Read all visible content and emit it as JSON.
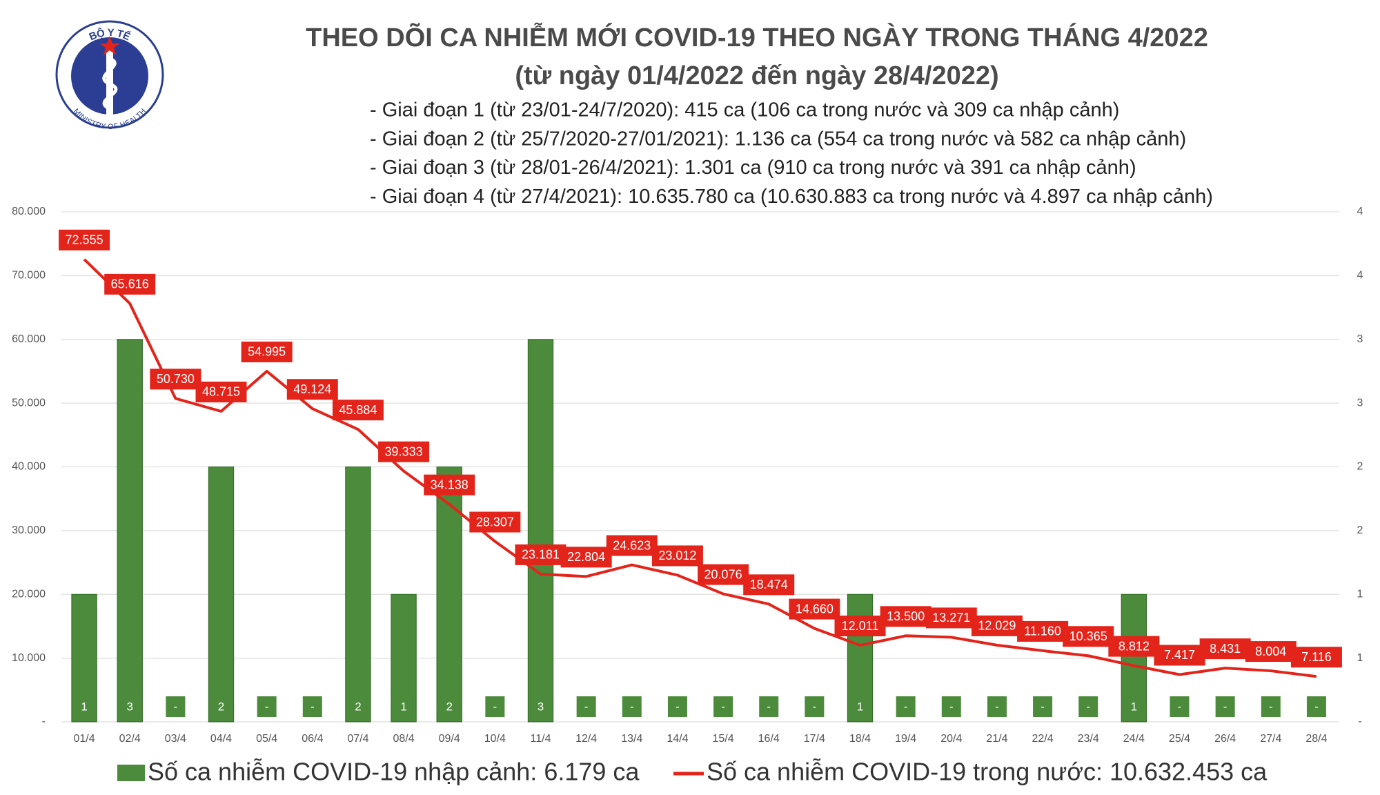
{
  "logo": {
    "top_text": "BỘ Y TẾ",
    "bottom_text": "MINISTRY OF HEALTH"
  },
  "chart_data": {
    "type": "combo",
    "title": "THEO DÕI CA NHIỄM MỚI COVID-19 THEO NGÀY TRONG THÁNG 4/2022",
    "subtitle": "(từ ngày 01/4/2022 đến ngày 28/4/2022)",
    "annotations": [
      "- Giai đoạn 1 (từ 23/01-24/7/2020): 415 ca (106 ca trong nước và 309 ca nhập cảnh)",
      "- Giai đoạn 2 (từ 25/7/2020-27/01/2021): 1.136 ca (554 ca trong nước và 582 ca nhập cảnh)",
      "- Giai đoạn 3 (từ 28/01-26/4/2021): 1.301 ca (910 ca trong nước và 391 ca nhập cảnh)",
      "- Giai đoạn 4 (từ 27/4/2021): 10.635.780 ca (10.630.883 ca trong nước và 4.897 ca nhập cảnh)"
    ],
    "categories": [
      "01/4",
      "02/4",
      "03/4",
      "04/4",
      "05/4",
      "06/4",
      "07/4",
      "08/4",
      "09/4",
      "10/4",
      "11/4",
      "12/4",
      "13/4",
      "14/4",
      "15/4",
      "16/4",
      "17/4",
      "18/4",
      "19/4",
      "20/4",
      "21/4",
      "22/4",
      "23/4",
      "24/4",
      "25/4",
      "26/4",
      "27/4",
      "28/4"
    ],
    "series": [
      {
        "name": "Số ca nhiễm COVID-19 nhập cảnh: 6.179 ca",
        "type": "bar",
        "axis": "y2",
        "color": "#4b8b3b",
        "values": [
          1,
          3,
          0,
          2,
          0,
          0,
          2,
          1,
          2,
          0,
          3,
          0,
          0,
          0,
          0,
          0,
          0,
          1,
          0,
          0,
          0,
          0,
          0,
          1,
          0,
          0,
          0,
          0
        ],
        "value_labels": [
          "1",
          "3",
          "-",
          "2",
          "-",
          "-",
          "2",
          "1",
          "2",
          "-",
          "3",
          "-",
          "-",
          "-",
          "-",
          "-",
          "-",
          "1",
          "-",
          "-",
          "-",
          "-",
          "-",
          "1",
          "-",
          "-",
          "-",
          "-"
        ]
      },
      {
        "name": "Số ca nhiễm COVID-19 trong nước: 10.632.453 ca",
        "type": "line",
        "color": "#e3241b",
        "values": [
          72555,
          65616,
          50730,
          48715,
          54995,
          49124,
          45884,
          39333,
          34138,
          28307,
          23181,
          22804,
          24623,
          23012,
          20076,
          18474,
          14660,
          12011,
          13500,
          13271,
          12029,
          11160,
          10365,
          8812,
          7417,
          8431,
          8004,
          7116
        ],
        "value_labels": [
          "72.555",
          "65.616",
          "50.730",
          "48.715",
          "54.995",
          "49.124",
          "45.884",
          "39.333",
          "34.138",
          "28.307",
          "23.181",
          "22.804",
          "24.623",
          "23.012",
          "20.076",
          "18.474",
          "14.660",
          "12.011",
          "13.500",
          "13.271",
          "12.029",
          "11.160",
          "10.365",
          "8.812",
          "7.417",
          "8.431",
          "8.004",
          "7.116"
        ]
      }
    ],
    "ylim": [
      0,
      80000
    ],
    "yticks": [
      {
        "value": 0,
        "label": "-"
      },
      {
        "value": 10000,
        "label": "10.000"
      },
      {
        "value": 20000,
        "label": "20.000"
      },
      {
        "value": 30000,
        "label": "30.000"
      },
      {
        "value": 40000,
        "label": "40.000"
      },
      {
        "value": 50000,
        "label": "50.000"
      },
      {
        "value": 60000,
        "label": "60.000"
      },
      {
        "value": 70000,
        "label": "70.000"
      },
      {
        "value": 80000,
        "label": "80.000"
      }
    ],
    "y2lim": [
      0,
      4
    ],
    "y2ticks": [
      {
        "value": 0,
        "label": "-"
      },
      {
        "value": 0.5,
        "label": "1"
      },
      1,
      {
        "value": 1.5,
        "label": "2"
      },
      2,
      {
        "value": 2.5,
        "label": "3"
      },
      3,
      {
        "value": 3.5,
        "label": "4"
      },
      4
    ],
    "grid": true
  }
}
